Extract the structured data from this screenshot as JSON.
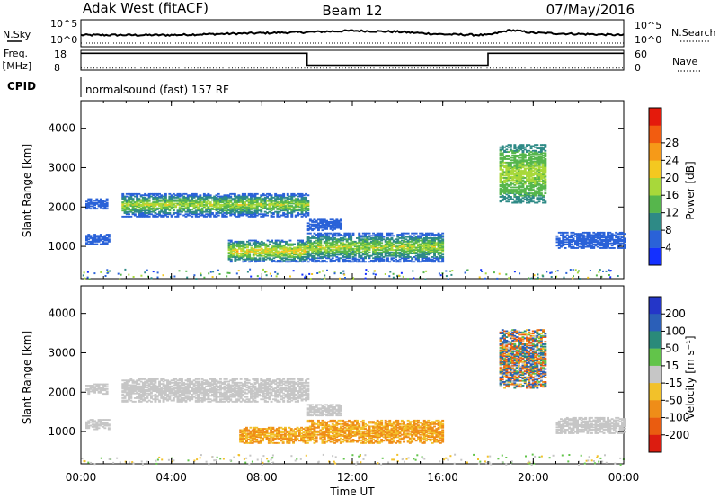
{
  "header": {
    "station": "Adak West (fitACF)",
    "beam": "Beam 12",
    "date": "07/May/2016"
  },
  "strips": {
    "nsky_label": "N.Sky",
    "nsearch_label": "N.Search",
    "freq_label_1": "Freq.",
    "freq_label_2": "[MHz]",
    "nave_label": "Nave",
    "cpid_label": "CPID",
    "nsky_ticks": [
      "10^5",
      "10^0"
    ],
    "nsearch_ticks": [
      "10^5",
      "10^0"
    ],
    "freq_ticks": [
      "18",
      "8"
    ],
    "nave_ticks": [
      "60",
      "0"
    ],
    "cpid_text": "normalsound (fast) 157 RF"
  },
  "colorbars": {
    "power": {
      "label": "Power [dB]",
      "ticks": [
        "4",
        "8",
        "12",
        "16",
        "20",
        "24",
        "28"
      ],
      "colors": [
        "#1430ff",
        "#2a62d8",
        "#2e8a86",
        "#56b64c",
        "#a8d83a",
        "#f4c820",
        "#f69a18",
        "#f25c10",
        "#e41a0c"
      ]
    },
    "velocity": {
      "label": "Velocity [m s⁻¹]",
      "ticks": [
        "200",
        "100",
        "50",
        "15",
        "-15",
        "-50",
        "-100",
        "-200"
      ],
      "colors": [
        "#2436c8",
        "#2b5fb8",
        "#2a8a7a",
        "#62c44a",
        "#c6c6c6",
        "#f2c12a",
        "#ef8d18",
        "#ea5c10",
        "#dc1c10"
      ]
    }
  },
  "axes": {
    "ylabel": "Slant Range [km]",
    "xlabel": "Time UT",
    "xticks": [
      "00:00",
      "04:00",
      "08:00",
      "12:00",
      "16:00",
      "20:00",
      "00:00"
    ],
    "yticks": [
      "1000",
      "2000",
      "3000",
      "4000"
    ]
  },
  "chart_data": [
    {
      "type": "line",
      "title": "",
      "x_range_hours": [
        0,
        24
      ],
      "series": [
        {
          "points": [
            [
              0,
              1.0
            ],
            [
              4,
              1.0
            ],
            [
              6,
              1.3
            ],
            [
              10,
              1.8
            ],
            [
              12,
              2.2
            ],
            [
              14,
              1.9
            ],
            [
              16,
              1.2
            ],
            [
              18,
              1.0
            ],
            [
              19,
              2.4
            ],
            [
              20,
              1.6
            ],
            [
              24,
              1.0
            ]
          ]
        },
        {
          "points": [
            [
              0,
              1.0
            ],
            [
              24,
              1.0
            ]
          ]
        }
      ]
    },
    {
      "type": "line",
      "title": "",
      "x_range_hours": [
        0,
        24
      ],
      "series": [
        {
          "points": [
            [
              0,
              16.5
            ],
            [
              10,
              16.5
            ],
            [
              10,
              10.5
            ],
            [
              18,
              10.5
            ],
            [
              18,
              16.5
            ],
            [
              24,
              16.5
            ]
          ]
        },
        {
          "points": [
            [
              0,
              6
            ],
            [
              24,
              6
            ]
          ]
        }
      ]
    },
    {
      "type": "heatmap",
      "title": "",
      "xlabel": "Time UT",
      "ylabel": "Slant Range [km]",
      "xlim_hours": [
        0,
        24
      ],
      "ylim_km": [
        180,
        4700
      ],
      "colorbar": "Power [dB]",
      "regions": [
        {
          "t0": 0.2,
          "t1": 1.1,
          "r0": 1950,
          "r1": 2200,
          "power_db": [
            6,
            10
          ]
        },
        {
          "t0": 0.2,
          "t1": 1.2,
          "r0": 1050,
          "r1": 1300,
          "power_db": [
            6,
            10
          ]
        },
        {
          "t0": 1.8,
          "t1": 10.0,
          "r0": 1750,
          "r1": 2350,
          "power_db": [
            6,
            24
          ]
        },
        {
          "t0": 6.5,
          "t1": 10.0,
          "r0": 600,
          "r1": 1150,
          "power_db": [
            8,
            28
          ]
        },
        {
          "t0": 10.0,
          "t1": 16.0,
          "r0": 600,
          "r1": 1350,
          "power_db": [
            6,
            24
          ]
        },
        {
          "t0": 10.0,
          "t1": 11.5,
          "r0": 1400,
          "r1": 1700,
          "power_db": [
            6,
            10
          ]
        },
        {
          "t0": 18.5,
          "t1": 20.5,
          "r0": 2100,
          "r1": 3600,
          "power_db": [
            12,
            22
          ]
        },
        {
          "t0": 21.0,
          "t1": 24.0,
          "r0": 950,
          "r1": 1350,
          "power_db": [
            6,
            10
          ]
        }
      ]
    },
    {
      "type": "heatmap",
      "title": "",
      "xlabel": "Time UT",
      "ylabel": "Slant Range [km]",
      "xlim_hours": [
        0,
        24
      ],
      "ylim_km": [
        180,
        4700
      ],
      "colorbar": "Velocity [m s⁻¹]",
      "regions": [
        {
          "t0": 0.2,
          "t1": 1.1,
          "r0": 1950,
          "r1": 2200,
          "velocity": [
            -15,
            15
          ]
        },
        {
          "t0": 0.2,
          "t1": 1.2,
          "r0": 1050,
          "r1": 1300,
          "velocity": [
            -15,
            15
          ]
        },
        {
          "t0": 1.8,
          "t1": 10.0,
          "r0": 1750,
          "r1": 2350,
          "velocity": [
            -15,
            15
          ]
        },
        {
          "t0": 7.0,
          "t1": 10.0,
          "r0": 700,
          "r1": 1100,
          "velocity": [
            -100,
            -15
          ]
        },
        {
          "t0": 10.0,
          "t1": 16.0,
          "r0": 700,
          "r1": 1300,
          "velocity": [
            -100,
            -15
          ]
        },
        {
          "t0": 10.0,
          "t1": 11.5,
          "r0": 1400,
          "r1": 1700,
          "velocity": [
            -15,
            15
          ]
        },
        {
          "t0": 18.5,
          "t1": 20.5,
          "r0": 2100,
          "r1": 3600,
          "velocity": [
            -200,
            200
          ]
        },
        {
          "t0": 21.0,
          "t1": 24.0,
          "r0": 950,
          "r1": 1350,
          "velocity": [
            -15,
            15
          ]
        }
      ]
    }
  ]
}
